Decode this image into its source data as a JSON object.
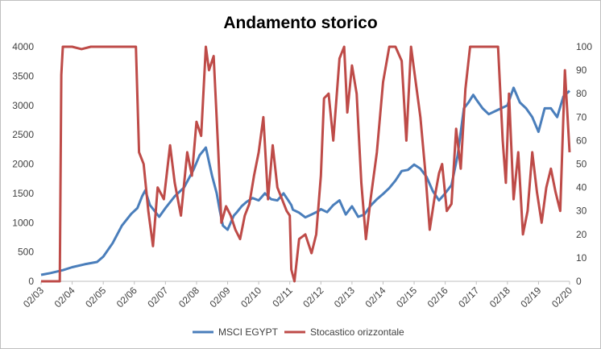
{
  "chart_data": {
    "type": "line",
    "title": "Andamento storico",
    "x_ticks": [
      "02/03",
      "02/04",
      "02/05",
      "02/06",
      "02/07",
      "02/08",
      "02/09",
      "02/10",
      "02/11",
      "02/12",
      "02/13",
      "02/14",
      "02/15",
      "02/16",
      "02/17",
      "02/18",
      "02/19",
      "02/20"
    ],
    "y_left": {
      "ticks": [
        0,
        500,
        1000,
        1500,
        2000,
        2500,
        3000,
        3500,
        4000
      ],
      "range": [
        0,
        4000
      ]
    },
    "y_right": {
      "ticks": [
        0,
        10,
        20,
        30,
        40,
        50,
        60,
        70,
        80,
        90,
        100
      ],
      "range": [
        0,
        100
      ]
    },
    "legend_position": "bottom",
    "grid": false,
    "series": [
      {
        "name": "MSCI EGYPT",
        "axis": "left",
        "color": "#4a7ebb",
        "x": [
          2003.0,
          2003.3,
          2003.7,
          2004.0,
          2004.4,
          2004.8,
          2005.0,
          2005.3,
          2005.6,
          2005.9,
          2006.1,
          2006.25,
          2006.35,
          2006.5,
          2006.8,
          2007.0,
          2007.3,
          2007.6,
          2007.9,
          2008.1,
          2008.3,
          2008.5,
          2008.65,
          2008.75,
          2008.85,
          2009.0,
          2009.1,
          2009.2,
          2009.3,
          2009.45,
          2009.6,
          2009.8,
          2010.0,
          2010.2,
          2010.4,
          2010.6,
          2010.8,
          2010.95,
          2011.05,
          2011.1,
          2011.3,
          2011.5,
          2011.7,
          2011.9,
          2012.0,
          2012.2,
          2012.4,
          2012.6,
          2012.8,
          2013.0,
          2013.2,
          2013.4,
          2013.6,
          2013.8,
          2014.0,
          2014.2,
          2014.4,
          2014.6,
          2014.8,
          2015.0,
          2015.2,
          2015.4,
          2015.6,
          2015.8,
          2016.0,
          2016.2,
          2016.4,
          2016.6,
          2016.75,
          2016.9,
          2017.0,
          2017.2,
          2017.4,
          2017.6,
          2017.8,
          2018.0,
          2018.2,
          2018.4,
          2018.6,
          2018.8,
          2019.0,
          2019.2,
          2019.4,
          2019.6,
          2019.8,
          2020.0
        ],
        "values": [
          110,
          140,
          190,
          240,
          290,
          330,
          420,
          650,
          950,
          1150,
          1250,
          1450,
          1550,
          1300,
          1100,
          1250,
          1450,
          1600,
          1900,
          2150,
          2280,
          1800,
          1500,
          1200,
          950,
          880,
          1000,
          1120,
          1180,
          1280,
          1350,
          1420,
          1380,
          1500,
          1400,
          1380,
          1500,
          1380,
          1300,
          1220,
          1170,
          1090,
          1140,
          1190,
          1230,
          1180,
          1300,
          1380,
          1140,
          1280,
          1100,
          1140,
          1290,
          1400,
          1490,
          1590,
          1720,
          1880,
          1900,
          1990,
          1920,
          1780,
          1540,
          1380,
          1500,
          1640,
          2150,
          2950,
          3050,
          3180,
          3100,
          2950,
          2850,
          2900,
          2950,
          3000,
          3300,
          3050,
          2950,
          2800,
          2550,
          2950,
          2950,
          2800,
          3150,
          3250
        ]
      },
      {
        "name": "Stocastico orizzontale",
        "axis": "right",
        "color": "#be4b48",
        "x": [
          2003.0,
          2003.6,
          2003.65,
          2003.7,
          2004.0,
          2004.3,
          2004.6,
          2005.0,
          2005.4,
          2005.8,
          2006.05,
          2006.15,
          2006.3,
          2006.45,
          2006.6,
          2006.75,
          2006.95,
          2007.15,
          2007.3,
          2007.5,
          2007.7,
          2007.85,
          2008.0,
          2008.15,
          2008.3,
          2008.4,
          2008.55,
          2008.7,
          2008.8,
          2008.95,
          2009.1,
          2009.25,
          2009.4,
          2009.55,
          2009.7,
          2009.85,
          2010.0,
          2010.15,
          2010.3,
          2010.45,
          2010.6,
          2010.75,
          2010.9,
          2011.0,
          2011.05,
          2011.15,
          2011.3,
          2011.5,
          2011.7,
          2011.85,
          2012.0,
          2012.1,
          2012.25,
          2012.4,
          2012.6,
          2012.75,
          2012.85,
          2013.0,
          2013.15,
          2013.3,
          2013.45,
          2013.6,
          2013.8,
          2014.0,
          2014.2,
          2014.4,
          2014.6,
          2014.75,
          2014.9,
          2015.05,
          2015.2,
          2015.35,
          2015.5,
          2015.65,
          2015.8,
          2015.9,
          2016.05,
          2016.2,
          2016.35,
          2016.5,
          2016.65,
          2016.8,
          2016.95,
          2017.1,
          2017.3,
          2017.5,
          2017.7,
          2017.85,
          2017.95,
          2018.05,
          2018.2,
          2018.35,
          2018.5,
          2018.65,
          2018.8,
          2018.95,
          2019.1,
          2019.25,
          2019.4,
          2019.55,
          2019.7,
          2019.85,
          2020.0
        ],
        "values": [
          0,
          0,
          88,
          100,
          100,
          99,
          100,
          100,
          100,
          100,
          100,
          55,
          50,
          30,
          15,
          40,
          35,
          58,
          42,
          28,
          55,
          45,
          68,
          62,
          100,
          90,
          96,
          55,
          25,
          32,
          28,
          22,
          18,
          28,
          33,
          45,
          55,
          70,
          35,
          58,
          40,
          35,
          30,
          28,
          5,
          0,
          18,
          20,
          12,
          20,
          45,
          78,
          80,
          60,
          95,
          100,
          72,
          92,
          80,
          42,
          18,
          35,
          55,
          85,
          100,
          100,
          94,
          60,
          100,
          85,
          70,
          48,
          22,
          35,
          46,
          50,
          30,
          33,
          65,
          48,
          82,
          100,
          100,
          100,
          100,
          100,
          100,
          60,
          42,
          80,
          35,
          55,
          20,
          30,
          55,
          38,
          25,
          40,
          48,
          38,
          30,
          90,
          55
        ]
      }
    ]
  }
}
